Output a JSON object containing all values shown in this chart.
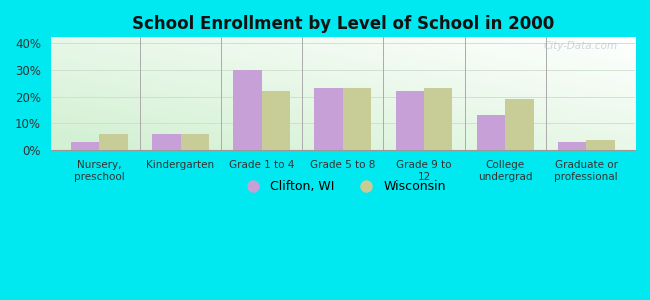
{
  "title": "School Enrollment by Level of School in 2000",
  "categories": [
    "Nursery,\npreschool",
    "Kindergarten",
    "Grade 1 to 4",
    "Grade 5 to 8",
    "Grade 9 to\n12",
    "College\nundergrad",
    "Graduate or\nprofessional"
  ],
  "clifton": [
    3.0,
    6.0,
    30.0,
    23.0,
    22.0,
    13.0,
    3.0
  ],
  "wisconsin": [
    6.0,
    6.0,
    22.0,
    23.0,
    23.0,
    19.0,
    4.0
  ],
  "clifton_color": "#c8a0d8",
  "wisconsin_color": "#c8cc96",
  "background_color": "#00e8f0",
  "ylim": [
    0,
    42
  ],
  "yticks": [
    0,
    10,
    20,
    30,
    40
  ],
  "legend_clifton": "Clifton, WI",
  "legend_wisconsin": "Wisconsin",
  "watermark": "City-Data.com"
}
